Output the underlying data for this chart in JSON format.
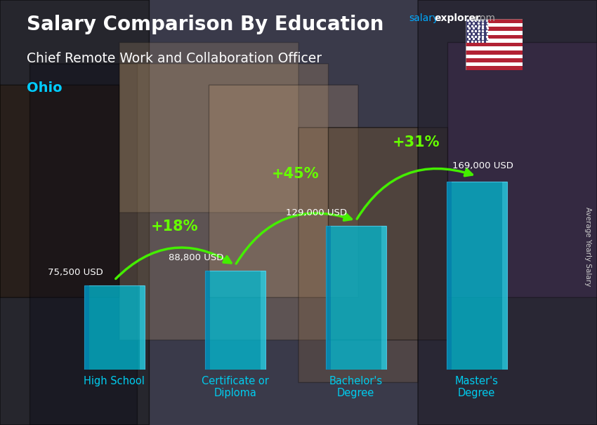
{
  "title_main": "Salary Comparison By Education",
  "subtitle_job": "Chief Remote Work and Collaboration Officer",
  "subtitle_location": "Ohio",
  "ylabel": "Average Yearly Salary",
  "categories": [
    "High School",
    "Certificate or\nDiploma",
    "Bachelor's\nDegree",
    "Master's\nDegree"
  ],
  "values": [
    75500,
    88800,
    129000,
    169000
  ],
  "labels": [
    "75,500 USD",
    "88,800 USD",
    "129,000 USD",
    "169,000 USD"
  ],
  "pct_changes": [
    "+18%",
    "+45%",
    "+31%"
  ],
  "bar_color": "#00bcd4",
  "bar_alpha": 0.75,
  "bar_edge_color": "#55ddff",
  "title_color": "#ffffff",
  "subtitle_job_color": "#ffffff",
  "subtitle_loc_color": "#00ccff",
  "salary_label_color": "#ffffff",
  "pct_color": "#66ff00",
  "arrow_color": "#44ee00",
  "ylabel_color": "#cccccc",
  "watermark_salary_color": "#00aaff",
  "watermark_explorer_color": "#ffffff",
  "watermark_com_color": "#aaaaaa",
  "ylim_max": 210000,
  "bar_width": 0.5,
  "bg_color": "#3a3a4a"
}
